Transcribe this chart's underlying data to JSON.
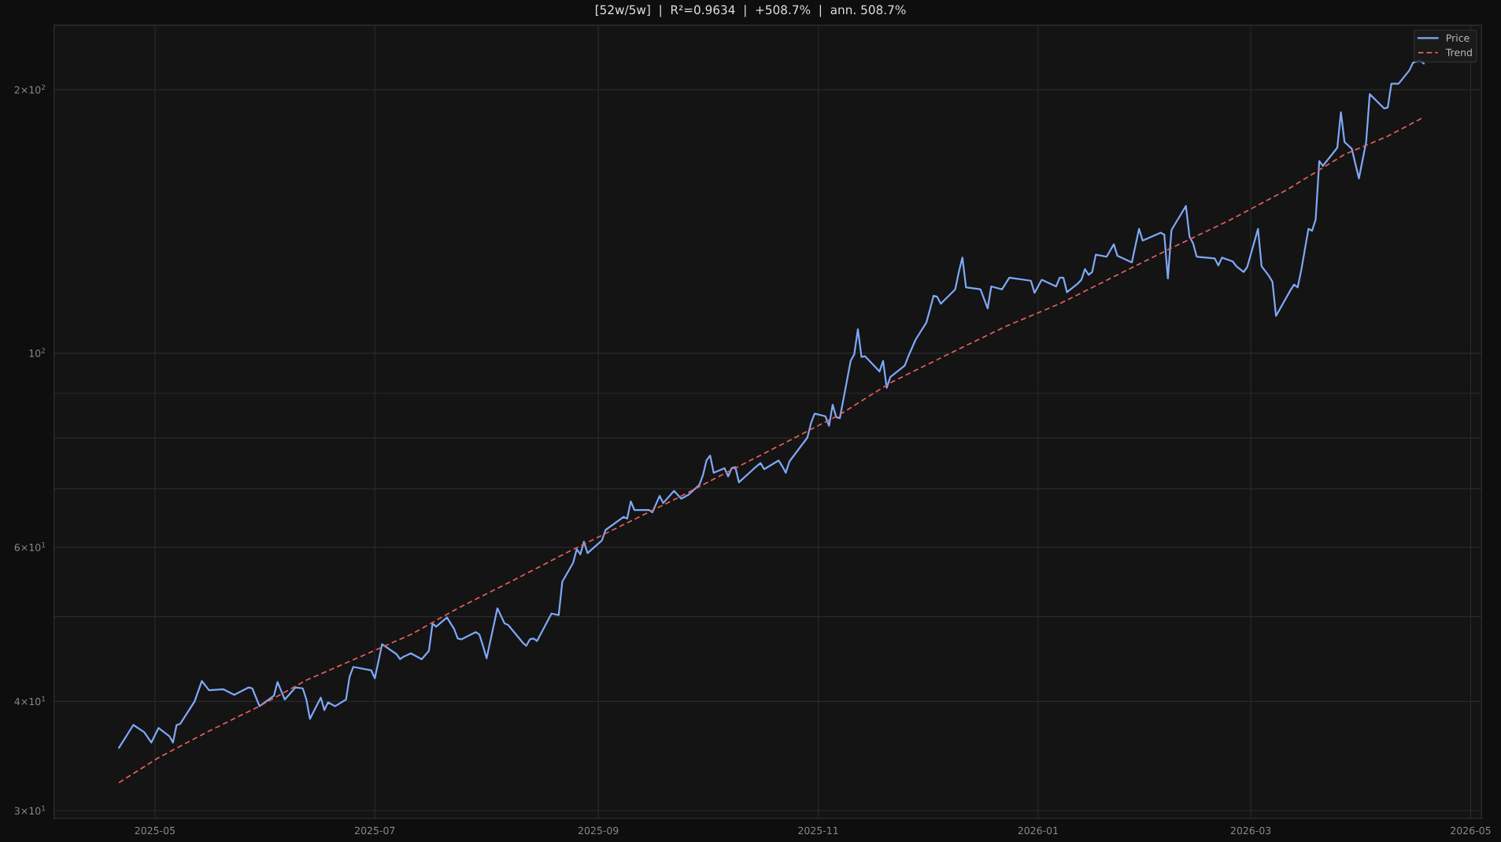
{
  "chart_data": {
    "type": "line",
    "title": "[52w/5w]  |  R²=0.9634  |  +508.7%  |  ann. 508.7%",
    "log": "y",
    "grid": true,
    "legend": "top right",
    "xlim": [
      "2025-04-03",
      "2026-05-04"
    ],
    "xticks": [
      {
        "value": "2025-05",
        "label": "2025-05"
      },
      {
        "value": "2025-07",
        "label": "2025-07"
      },
      {
        "value": "2025-09",
        "label": "2025-09"
      },
      {
        "value": "2025-11",
        "label": "2025-11"
      },
      {
        "value": "2026-01",
        "label": "2026-01"
      },
      {
        "value": "2026-03",
        "label": "2026-03"
      },
      {
        "value": "2026-05",
        "label": "2026-05"
      }
    ],
    "ylim": [
      29.4,
      237
    ],
    "yticks": [
      {
        "value": 30,
        "label": "3×10$^{1}$"
      },
      {
        "value": 40,
        "label": "4×10$^{1}$"
      },
      {
        "value": 50,
        "label": null
      },
      {
        "value": 60,
        "label": "6×10$^{1}$"
      },
      {
        "value": 70,
        "label": null
      },
      {
        "value": 80,
        "label": null
      },
      {
        "value": 90,
        "label": null
      },
      {
        "value": 100,
        "label": "10$^{2}$"
      },
      {
        "value": 200,
        "label": "2×10$^{2}$"
      }
    ],
    "series": [
      {
        "name": "Price",
        "color": "#7fa8f8",
        "line_style": "solid",
        "x": [
          "2025-04-21",
          "2025-04-25",
          "2025-04-28",
          "2025-04-30",
          "2025-05-02",
          "2025-05-05",
          "2025-05-06",
          "2025-05-07",
          "2025-05-08",
          "2025-05-12",
          "2025-05-14",
          "2025-05-16",
          "2025-05-20",
          "2025-05-23",
          "2025-05-27",
          "2025-05-28",
          "2025-05-30",
          "2025-06-03",
          "2025-06-04",
          "2025-06-06",
          "2025-06-09",
          "2025-06-11",
          "2025-06-12",
          "2025-06-13",
          "2025-06-16",
          "2025-06-17",
          "2025-06-18",
          "2025-06-20",
          "2025-06-23",
          "2025-06-24",
          "2025-06-25",
          "2025-06-30",
          "2025-07-01",
          "2025-07-03",
          "2025-07-07",
          "2025-07-08",
          "2025-07-09",
          "2025-07-11",
          "2025-07-14",
          "2025-07-16",
          "2025-07-17",
          "2025-07-18",
          "2025-07-21",
          "2025-07-23",
          "2025-07-24",
          "2025-07-25",
          "2025-07-29",
          "2025-07-30",
          "2025-07-31",
          "2025-08-01",
          "2025-08-04",
          "2025-08-06",
          "2025-08-07",
          "2025-08-11",
          "2025-08-12",
          "2025-08-13",
          "2025-08-14",
          "2025-08-15",
          "2025-08-19",
          "2025-08-21",
          "2025-08-22",
          "2025-08-25",
          "2025-08-26",
          "2025-08-27",
          "2025-08-28",
          "2025-08-29",
          "2025-09-02",
          "2025-09-03",
          "2025-09-08",
          "2025-09-09",
          "2025-09-10",
          "2025-09-11",
          "2025-09-15",
          "2025-09-16",
          "2025-09-18",
          "2025-09-19",
          "2025-09-22",
          "2025-09-24",
          "2025-09-26",
          "2025-09-29",
          "2025-09-30",
          "2025-10-01",
          "2025-10-02",
          "2025-10-03",
          "2025-10-06",
          "2025-10-07",
          "2025-10-08",
          "2025-10-09",
          "2025-10-10",
          "2025-10-14",
          "2025-10-16",
          "2025-10-17",
          "2025-10-21",
          "2025-10-22",
          "2025-10-23",
          "2025-10-24",
          "2025-10-29",
          "2025-10-30",
          "2025-10-31",
          "2025-11-03",
          "2025-11-04",
          "2025-11-05",
          "2025-11-06",
          "2025-11-07",
          "2025-11-10",
          "2025-11-11",
          "2025-11-12",
          "2025-11-13",
          "2025-11-14",
          "2025-11-18",
          "2025-11-19",
          "2025-11-20",
          "2025-11-21",
          "2025-11-25",
          "2025-11-26",
          "2025-11-28",
          "2025-12-01",
          "2025-12-02",
          "2025-12-03",
          "2025-12-04",
          "2025-12-05",
          "2025-12-09",
          "2025-12-10",
          "2025-12-11",
          "2025-12-12",
          "2025-12-16",
          "2025-12-18",
          "2025-12-19",
          "2025-12-22",
          "2025-12-24",
          "2025-12-30",
          "2025-12-31",
          "2026-01-02",
          "2026-01-06",
          "2026-01-07",
          "2026-01-08",
          "2026-01-09",
          "2026-01-12",
          "2026-01-13",
          "2026-01-14",
          "2026-01-15",
          "2026-01-16",
          "2026-01-17",
          "2026-01-20",
          "2026-01-22",
          "2026-01-23",
          "2026-01-27",
          "2026-01-29",
          "2026-01-30",
          "2026-02-04",
          "2026-02-05",
          "2026-02-06",
          "2026-02-07",
          "2026-02-11",
          "2026-02-12",
          "2026-02-13",
          "2026-02-14",
          "2026-02-19",
          "2026-02-20",
          "2026-02-21",
          "2026-02-24",
          "2026-02-25",
          "2026-02-27",
          "2026-02-28",
          "2026-03-03",
          "2026-03-04",
          "2026-03-06",
          "2026-03-07",
          "2026-03-08",
          "2026-03-12",
          "2026-03-13",
          "2026-03-14",
          "2026-03-15",
          "2026-03-17",
          "2026-03-18",
          "2026-03-19",
          "2026-03-20",
          "2026-03-21",
          "2026-03-25",
          "2026-03-26",
          "2026-03-27",
          "2026-03-29",
          "2026-03-31",
          "2026-04-02",
          "2026-04-03",
          "2026-04-07",
          "2026-04-08",
          "2026-04-09",
          "2026-04-11",
          "2026-04-14",
          "2026-04-15",
          "2026-04-17",
          "2026-04-18"
        ],
        "values": [
          35.4,
          37.6,
          36.9,
          35.9,
          37.3,
          36.5,
          35.9,
          37.6,
          37.7,
          40.0,
          42.2,
          41.2,
          41.3,
          40.7,
          41.5,
          41.4,
          39.5,
          40.6,
          42.1,
          40.2,
          41.5,
          41.4,
          40.2,
          38.2,
          40.4,
          39.1,
          39.9,
          39.5,
          40.2,
          42.7,
          43.8,
          43.4,
          42.5,
          46.5,
          45.3,
          44.7,
          45.0,
          45.4,
          44.7,
          45.7,
          49.1,
          48.7,
          49.9,
          48.4,
          47.2,
          47.1,
          48.0,
          47.7,
          46.3,
          44.8,
          51.1,
          49.1,
          48.9,
          46.7,
          46.3,
          47.1,
          47.2,
          46.9,
          50.4,
          50.2,
          54.8,
          57.6,
          59.7,
          58.9,
          60.9,
          59.1,
          61.1,
          62.8,
          65.0,
          64.7,
          67.7,
          66.2,
          66.2,
          65.8,
          68.7,
          67.4,
          69.6,
          68.2,
          68.9,
          70.7,
          72.5,
          75.4,
          76.4,
          73.0,
          73.9,
          72.3,
          73.9,
          74.1,
          71.2,
          73.7,
          74.9,
          73.7,
          75.4,
          74.3,
          73.0,
          75.2,
          80.1,
          83.2,
          85.3,
          84.7,
          82.6,
          87.3,
          84.5,
          84.3,
          98.0,
          99.7,
          106.5,
          99.0,
          99.2,
          95.3,
          98.0,
          91.3,
          93.9,
          96.8,
          99.2,
          103.6,
          108.4,
          112.2,
          116.3,
          116.0,
          113.9,
          118.3,
          123.8,
          128.6,
          118.9,
          118.3,
          112.5,
          119.2,
          118.3,
          122.0,
          121.0,
          117.2,
          121.3,
          119.2,
          122.0,
          122.0,
          117.4,
          120.1,
          121.3,
          124.8,
          122.9,
          123.8,
          129.6,
          128.9,
          133.2,
          129.2,
          127.0,
          138.7,
          134.5,
          137.3,
          136.6,
          121.7,
          138.3,
          147.3,
          135.9,
          133.5,
          128.9,
          128.3,
          126.0,
          128.6,
          127.3,
          125.7,
          123.8,
          125.4,
          138.7,
          125.7,
          122.6,
          120.7,
          110.3,
          118.0,
          119.8,
          118.9,
          124.4,
          138.7,
          138.0,
          142.2,
          165.8,
          163.7,
          171.7,
          188.5,
          174.3,
          171.3,
          158.4,
          174.3,
          197.7,
          190.4,
          190.9,
          203.2,
          203.2,
          210.5,
          214.8,
          215.9,
          214.3
        ]
      },
      {
        "name": "Trend",
        "color": "#e8605c",
        "line_style": "dashed",
        "x": [
          "2025-04-21",
          "2025-05-02",
          "2025-05-16",
          "2025-05-30",
          "2025-06-12",
          "2025-06-27",
          "2025-07-11",
          "2025-07-24",
          "2025-08-08",
          "2025-08-23",
          "2025-09-06",
          "2025-09-22",
          "2025-10-07",
          "2025-10-22",
          "2025-11-07",
          "2025-11-21",
          "2025-12-07",
          "2025-12-23",
          "2026-01-07",
          "2026-01-22",
          "2026-02-07",
          "2026-02-23",
          "2026-03-11",
          "2026-03-27",
          "2026-04-08",
          "2026-04-18"
        ],
        "values": [
          32.3,
          34.5,
          37.0,
          39.5,
          42.3,
          45.0,
          47.7,
          51.1,
          54.9,
          59.1,
          63.1,
          68.0,
          73.2,
          78.7,
          85.1,
          92.5,
          99.7,
          107.3,
          113.9,
          122.3,
          131.9,
          141.8,
          153.7,
          168.7,
          177.0,
          186.1
        ]
      }
    ]
  }
}
